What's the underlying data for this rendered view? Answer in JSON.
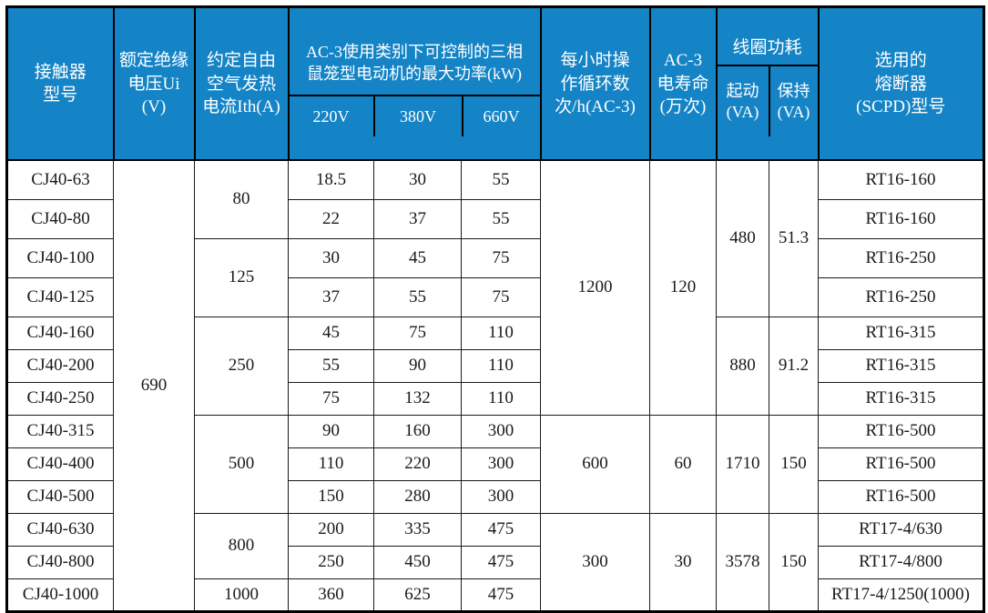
{
  "colors": {
    "header_bg": "#1584c6",
    "header_text": "#ffffff",
    "border_dark": "#000000",
    "body_text": "#1a1a1a",
    "body_bg": "#ffffff"
  },
  "header": {
    "model": "接触器\n型号",
    "ui": "额定绝缘\n电压Ui (V)",
    "ith": "约定自由\n空气发热\n电流Ith(A)",
    "kw_group": "AC-3使用类别下可控制的三相\n鼠笼型电动机的最大功率(kW)",
    "v220": "220V",
    "v380": "380V",
    "v660": "660V",
    "cycles": "每小时操\n作循环数\n次/h(AC-3)",
    "life": "AC-3\n电寿命\n(万次)",
    "coil_group": "线圈功耗",
    "coil_start": "起动\n(VA)",
    "coil_hold": "保持\n(VA)",
    "fuse": "选用的\n熔断器\n(SCPD)型号"
  },
  "rows": [
    {
      "cells": [
        {
          "col": "model",
          "v": "CJ40-63"
        },
        {
          "col": "ui",
          "v": "690",
          "span": 13
        },
        {
          "col": "ith",
          "v": "80",
          "span": 2
        },
        {
          "col": "kw220",
          "v": "18.5"
        },
        {
          "col": "kw380",
          "v": "30"
        },
        {
          "col": "kw660",
          "v": "55"
        },
        {
          "col": "cycles",
          "v": "1200",
          "span": 7
        },
        {
          "col": "life",
          "v": "120",
          "span": 7
        },
        {
          "col": "coil_start",
          "v": "480",
          "span": 4
        },
        {
          "col": "coil_hold",
          "v": "51.3",
          "span": 4
        },
        {
          "col": "fuse",
          "v": "RT16-160"
        }
      ]
    },
    {
      "cells": [
        {
          "col": "model",
          "v": "CJ40-80"
        },
        {
          "col": "kw220",
          "v": "22"
        },
        {
          "col": "kw380",
          "v": "37"
        },
        {
          "col": "kw660",
          "v": "55"
        },
        {
          "col": "fuse",
          "v": "RT16-160"
        }
      ]
    },
    {
      "cells": [
        {
          "col": "model",
          "v": "CJ40-100"
        },
        {
          "col": "ith",
          "v": "125",
          "span": 2
        },
        {
          "col": "kw220",
          "v": "30"
        },
        {
          "col": "kw380",
          "v": "45"
        },
        {
          "col": "kw660",
          "v": "75"
        },
        {
          "col": "fuse",
          "v": "RT16-250"
        }
      ]
    },
    {
      "cells": [
        {
          "col": "model",
          "v": "CJ40-125"
        },
        {
          "col": "kw220",
          "v": "37"
        },
        {
          "col": "kw380",
          "v": "55"
        },
        {
          "col": "kw660",
          "v": "75"
        },
        {
          "col": "fuse",
          "v": "RT16-250"
        }
      ]
    },
    {
      "cells": [
        {
          "col": "model",
          "v": "CJ40-160"
        },
        {
          "col": "ith",
          "v": "250",
          "span": 3
        },
        {
          "col": "kw220",
          "v": "45"
        },
        {
          "col": "kw380",
          "v": "75"
        },
        {
          "col": "kw660",
          "v": "110"
        },
        {
          "col": "coil_start",
          "v": "880",
          "span": 3
        },
        {
          "col": "coil_hold",
          "v": "91.2",
          "span": 3
        },
        {
          "col": "fuse",
          "v": "RT16-315"
        }
      ]
    },
    {
      "cells": [
        {
          "col": "model",
          "v": "CJ40-200"
        },
        {
          "col": "kw220",
          "v": "55"
        },
        {
          "col": "kw380",
          "v": "90"
        },
        {
          "col": "kw660",
          "v": "110"
        },
        {
          "col": "fuse",
          "v": "RT16-315"
        }
      ]
    },
    {
      "cells": [
        {
          "col": "model",
          "v": "CJ40-250"
        },
        {
          "col": "kw220",
          "v": "75"
        },
        {
          "col": "kw380",
          "v": "132"
        },
        {
          "col": "kw660",
          "v": "110"
        },
        {
          "col": "fuse",
          "v": "RT16-315"
        }
      ]
    },
    {
      "cells": [
        {
          "col": "model",
          "v": "CJ40-315"
        },
        {
          "col": "ith",
          "v": "500",
          "span": 3
        },
        {
          "col": "kw220",
          "v": "90"
        },
        {
          "col": "kw380",
          "v": "160"
        },
        {
          "col": "kw660",
          "v": "300"
        },
        {
          "col": "cycles",
          "v": "600",
          "span": 3
        },
        {
          "col": "life",
          "v": "60",
          "span": 3
        },
        {
          "col": "coil_start",
          "v": "1710",
          "span": 3
        },
        {
          "col": "coil_hold",
          "v": "150",
          "span": 3
        },
        {
          "col": "fuse",
          "v": "RT16-500"
        }
      ]
    },
    {
      "cells": [
        {
          "col": "model",
          "v": "CJ40-400"
        },
        {
          "col": "kw220",
          "v": "110"
        },
        {
          "col": "kw380",
          "v": "220"
        },
        {
          "col": "kw660",
          "v": "300"
        },
        {
          "col": "fuse",
          "v": "RT16-500"
        }
      ]
    },
    {
      "cells": [
        {
          "col": "model",
          "v": "CJ40-500"
        },
        {
          "col": "kw220",
          "v": "150"
        },
        {
          "col": "kw380",
          "v": "280"
        },
        {
          "col": "kw660",
          "v": "300"
        },
        {
          "col": "fuse",
          "v": "RT16-500"
        }
      ]
    },
    {
      "cells": [
        {
          "col": "model",
          "v": "CJ40-630"
        },
        {
          "col": "ith",
          "v": "800",
          "span": 2
        },
        {
          "col": "kw220",
          "v": "200"
        },
        {
          "col": "kw380",
          "v": "335"
        },
        {
          "col": "kw660",
          "v": "475"
        },
        {
          "col": "cycles",
          "v": "300",
          "span": 3
        },
        {
          "col": "life",
          "v": "30",
          "span": 3
        },
        {
          "col": "coil_start",
          "v": "3578",
          "span": 3
        },
        {
          "col": "coil_hold",
          "v": "150",
          "span": 3
        },
        {
          "col": "fuse",
          "v": "RT17-4/630"
        }
      ]
    },
    {
      "cells": [
        {
          "col": "model",
          "v": "CJ40-800"
        },
        {
          "col": "kw220",
          "v": "250"
        },
        {
          "col": "kw380",
          "v": "450"
        },
        {
          "col": "kw660",
          "v": "475"
        },
        {
          "col": "fuse",
          "v": "RT17-4/800"
        }
      ]
    },
    {
      "cells": [
        {
          "col": "model",
          "v": "CJ40-1000"
        },
        {
          "col": "ith",
          "v": "1000"
        },
        {
          "col": "kw220",
          "v": "360"
        },
        {
          "col": "kw380",
          "v": "625"
        },
        {
          "col": "kw660",
          "v": "475"
        },
        {
          "col": "fuse",
          "v": "RT17-4/1250(1000)"
        }
      ]
    }
  ]
}
